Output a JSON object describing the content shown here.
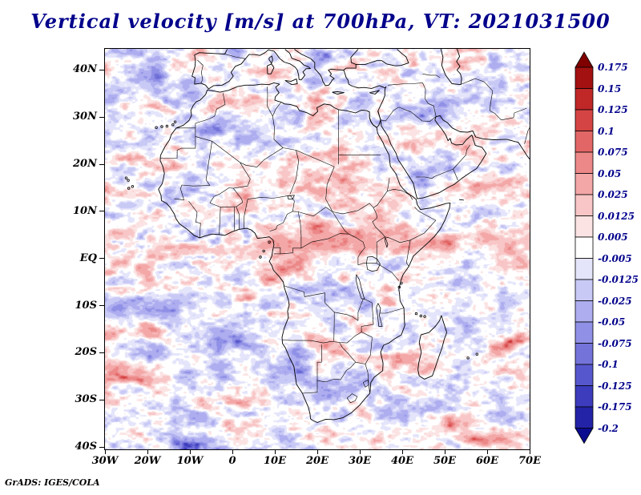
{
  "title": "Vertical velocity [m/s] at 700hPa, VT: 2021031500",
  "attribution": "GrADS: IGES/COLA",
  "theme": {
    "background": "#ffffff",
    "title_color": "#00008b",
    "axis_label_color": "#000000",
    "colorbar_label_color": "#00008b",
    "coastline_color": "#000000"
  },
  "chart_data": {
    "type": "heatmap",
    "subtype": "filled-contour-map",
    "title": "Vertical velocity [m/s] at 700hPa, VT: 2021031500",
    "variable": "Vertical velocity",
    "units": "m/s",
    "pressure_level": "700hPa",
    "valid_time": "2021031500",
    "lon_range": [
      -30,
      70
    ],
    "lat_range": [
      -40.5,
      44.5
    ],
    "grid": false,
    "x_axis": {
      "tick_lons": [
        -30,
        -20,
        -10,
        0,
        10,
        20,
        30,
        40,
        50,
        60,
        70
      ],
      "tick_labels": [
        "30W",
        "20W",
        "10W",
        "0",
        "10E",
        "20E",
        "30E",
        "40E",
        "50E",
        "60E",
        "70E"
      ]
    },
    "y_axis": {
      "tick_lats": [
        40,
        30,
        20,
        10,
        0,
        -10,
        -20,
        -30,
        -40
      ],
      "tick_labels": [
        "40N",
        "30N",
        "20N",
        "10N",
        "EQ",
        "10S",
        "20S",
        "30S",
        "40S"
      ]
    },
    "colorbar": {
      "position": "right",
      "labels_top_to_bottom": [
        "0.175",
        "0.15",
        "0.125",
        "0.1",
        "0.075",
        "0.05",
        "0.025",
        "0.0125",
        "0.005",
        "-0.005",
        "-0.0125",
        "-0.025",
        "-0.05",
        "-0.075",
        "-0.1",
        "-0.125",
        "-0.175",
        "-0.2"
      ],
      "levels_ascending": [
        -0.2,
        -0.175,
        -0.125,
        -0.1,
        -0.075,
        -0.05,
        -0.025,
        -0.0125,
        -0.005,
        0.005,
        0.0125,
        0.025,
        0.05,
        0.075,
        0.1,
        0.125,
        0.15,
        0.175
      ],
      "colors_ascending": [
        "#0b0b8f",
        "#2323a8",
        "#3c3cbd",
        "#5757cd",
        "#7373da",
        "#9090e6",
        "#adadef",
        "#c9c9f6",
        "#e4e4fb",
        "#ffffff",
        "#fce3e3",
        "#f8c6c6",
        "#f3a7a7",
        "#ec8888",
        "#e26666",
        "#d54444",
        "#c02727",
        "#a31111",
        "#800000"
      ]
    }
  }
}
